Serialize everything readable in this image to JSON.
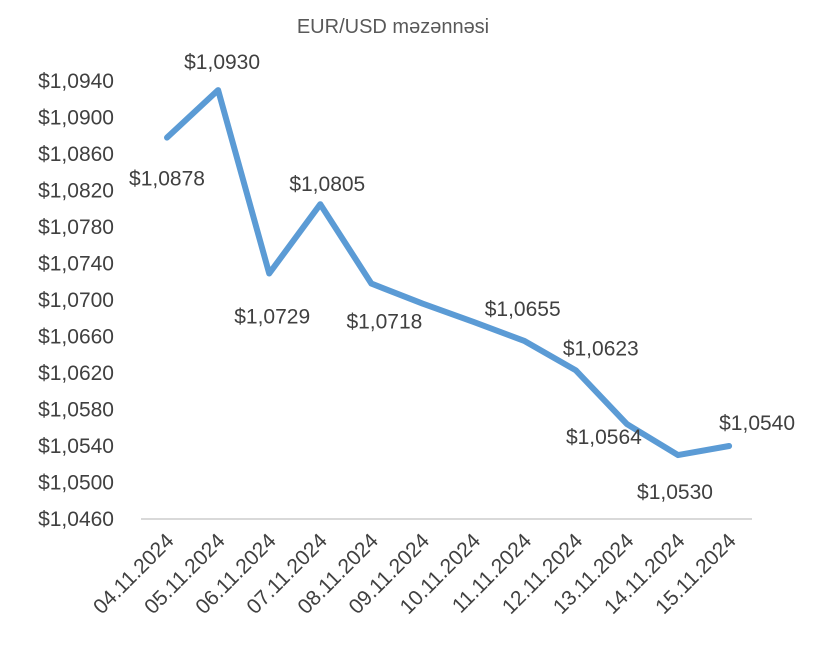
{
  "chart_data": {
    "type": "line",
    "title": "EUR/USD məzənnəsi",
    "xlabel": "",
    "ylabel": "",
    "categories": [
      "04.11.2024",
      "05.11.2024",
      "06.11.2024",
      "07.11.2024",
      "08.11.2024",
      "09.11.2024",
      "10.11.2024",
      "11.11.2024",
      "12.11.2024",
      "13.11.2024",
      "14.11.2024",
      "15.11.2024"
    ],
    "series": [
      {
        "values": [
          1.0878,
          1.093,
          1.0729,
          1.0805,
          1.0718,
          1.0696,
          1.0676,
          1.0655,
          1.0623,
          1.0564,
          1.053,
          1.054
        ],
        "color": "#5b9bd5"
      }
    ],
    "data_labels": [
      "$1,0878",
      "$1,0930",
      "$1,0729",
      "$1,0805",
      "$1,0718",
      "",
      "",
      "$1,0655",
      "$1,0623",
      "$1,0564",
      "$1,0530",
      "$1,0540"
    ],
    "yticks": [
      "$1,0460",
      "$1,0500",
      "$1,0540",
      "$1,0580",
      "$1,0620",
      "$1,0660",
      "$1,0700",
      "$1,0740",
      "$1,0780",
      "$1,0820",
      "$1,0860",
      "$1,0900",
      "$1,0940"
    ],
    "ylim": [
      1.046,
      1.094
    ],
    "grid": false,
    "legend": "none",
    "axis_color": "#d9d9d9",
    "text_color": "#404040"
  }
}
